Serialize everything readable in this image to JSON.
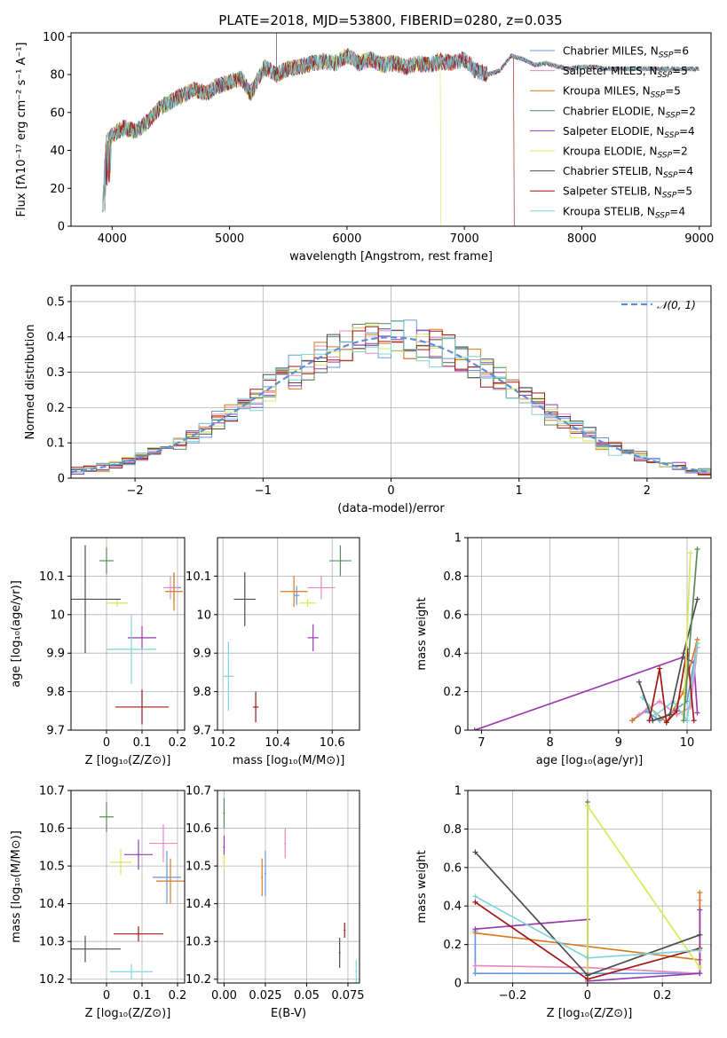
{
  "figure_title": "PLATE=2018, MJD=53800, FIBERID=0280, z=0.035",
  "models": [
    {
      "name": "Chabrier MILES",
      "n": "6",
      "color": "#6699dd"
    },
    {
      "name": "Salpeter MILES",
      "n": "5",
      "color": "#e88ac0"
    },
    {
      "name": "Kroupa MILES",
      "n": "5",
      "color": "#d97a20"
    },
    {
      "name": "Chabrier ELODIE",
      "n": "2",
      "color": "#5a8a5a"
    },
    {
      "name": "Salpeter ELODIE",
      "n": "4",
      "color": "#9a3ab0"
    },
    {
      "name": "Kroupa ELODIE",
      "n": "2",
      "color": "#d8e85a"
    },
    {
      "name": "Chabrier STELIB",
      "n": "4",
      "color": "#4d4d4d"
    },
    {
      "name": "Salpeter STELIB",
      "n": "5",
      "color": "#a01818"
    },
    {
      "name": "Kroupa STELIB",
      "n": "4",
      "color": "#80d4d8"
    }
  ],
  "chart_data": [
    {
      "id": "spectrum",
      "type": "line",
      "xlabel": "wavelength [Angstrom, rest frame]",
      "ylabel": "Flux [fλ10⁻¹⁷ erg cm⁻² s⁻¹ A⁻¹]",
      "xlim": [
        3650,
        9100
      ],
      "ylim": [
        0,
        102
      ],
      "xticks": [
        4000,
        5000,
        6000,
        7000,
        8000,
        9000
      ],
      "yticks": [
        0,
        20,
        40,
        60,
        80,
        100
      ],
      "grid": false,
      "legend": "top-right",
      "continuum": [
        [
          3920,
          12
        ],
        [
          3950,
          45
        ],
        [
          4000,
          48
        ],
        [
          4100,
          52
        ],
        [
          4200,
          50
        ],
        [
          4300,
          55
        ],
        [
          4400,
          62
        ],
        [
          4500,
          66
        ],
        [
          4600,
          69
        ],
        [
          4700,
          72
        ],
        [
          4800,
          70
        ],
        [
          4900,
          74
        ],
        [
          5000,
          76
        ],
        [
          5100,
          78
        ],
        [
          5180,
          70
        ],
        [
          5300,
          84
        ],
        [
          5400,
          80
        ],
        [
          5500,
          83
        ],
        [
          5600,
          84
        ],
        [
          5700,
          86
        ],
        [
          5800,
          87
        ],
        [
          5900,
          86
        ],
        [
          6000,
          90
        ],
        [
          6100,
          86
        ],
        [
          6200,
          88
        ],
        [
          6300,
          85
        ],
        [
          6400,
          86
        ],
        [
          6500,
          84
        ],
        [
          6600,
          86
        ],
        [
          6700,
          85
        ],
        [
          6800,
          87
        ],
        [
          6900,
          86
        ],
        [
          7000,
          88
        ],
        [
          7100,
          82
        ],
        [
          7200,
          80
        ],
        [
          7300,
          82
        ],
        [
          7400,
          90
        ],
        [
          7500,
          88
        ],
        [
          7600,
          85
        ],
        [
          7700,
          86
        ],
        [
          7800,
          84
        ],
        [
          7900,
          83
        ],
        [
          8000,
          84
        ],
        [
          8100,
          84
        ],
        [
          8200,
          83
        ],
        [
          8300,
          83
        ],
        [
          8400,
          83
        ],
        [
          8500,
          83
        ],
        [
          8600,
          83
        ],
        [
          8700,
          83
        ],
        [
          8800,
          83
        ],
        [
          8900,
          83
        ],
        [
          9000,
          83
        ]
      ],
      "dips": [
        {
          "model": "Kroupa ELODIE",
          "x": 6795,
          "low": 0,
          "until": 9000
        },
        {
          "model": "Salpeter STELIB",
          "x": 7420,
          "low": 0,
          "until": 9000
        }
      ]
    },
    {
      "id": "residuals",
      "type": "histogram",
      "xlabel": "(data-model)/error",
      "ylabel": "Normed distribution",
      "xlim": [
        -2.5,
        2.5
      ],
      "ylim": [
        0,
        0.545
      ],
      "xticks": [
        -2,
        -1,
        0,
        1,
        2
      ],
      "yticks": [
        0.0,
        0.1,
        0.2,
        0.3,
        0.4,
        0.5
      ],
      "grid": true,
      "legend": "top-right",
      "legend_label": "𝒩(0, 1)",
      "normal_color": "#5a8fd8",
      "bin_width": 0.1
    },
    {
      "id": "age_vs_Z",
      "type": "errorbar",
      "xlabel": "Z [log₁₀(Z/Z⊙)]",
      "ylabel": "age  [log₁₀(age/yr)]",
      "xlim": [
        -0.1,
        0.22
      ],
      "ylim": [
        9.7,
        10.2
      ],
      "xticks": [
        0.0,
        0.1,
        0.2
      ],
      "yticks": [
        9.7,
        9.8,
        9.9,
        10.0,
        10.1
      ],
      "grid": true,
      "points": [
        {
          "model": "Chabrier MILES",
          "x": 0.19,
          "xerr": 0.02,
          "y": 10.07,
          "yerr": 0.035
        },
        {
          "model": "Salpeter MILES",
          "x": 0.18,
          "xerr": 0.02,
          "y": 10.07,
          "yerr": 0.03
        },
        {
          "model": "Kroupa MILES",
          "x": 0.19,
          "xerr": 0.025,
          "y": 10.06,
          "yerr": 0.05
        },
        {
          "model": "Chabrier ELODIE",
          "x": 0.0,
          "xerr": 0.02,
          "y": 10.14,
          "yerr": 0.035
        },
        {
          "model": "Salpeter ELODIE",
          "x": 0.1,
          "xerr": 0.04,
          "y": 9.94,
          "yerr": 0.03
        },
        {
          "model": "Kroupa ELODIE",
          "x": 0.03,
          "xerr": 0.03,
          "y": 10.03,
          "yerr": 0.01
        },
        {
          "model": "Chabrier STELIB",
          "x": -0.06,
          "xerr": 0.1,
          "y": 10.04,
          "yerr": 0.14
        },
        {
          "model": "Salpeter STELIB",
          "x": 0.1,
          "xerr": 0.075,
          "y": 9.76,
          "yerr": 0.045
        },
        {
          "model": "Kroupa STELIB",
          "x": 0.07,
          "xerr": 0.07,
          "y": 9.91,
          "yerr": 0.09
        }
      ]
    },
    {
      "id": "age_vs_mass",
      "type": "errorbar",
      "xlabel": "mass [log₁₀(M/M⊙)]",
      "xlim": [
        10.18,
        10.7
      ],
      "ylim": [
        9.7,
        10.2
      ],
      "xticks": [
        10.2,
        10.4,
        10.6
      ],
      "yticks": [
        9.7,
        9.8,
        9.9,
        10.0,
        10.1
      ],
      "grid": true,
      "points": [
        {
          "model": "Chabrier MILES",
          "x": 10.47,
          "xerr": 0.01,
          "y": 10.05,
          "yerr": 0.025
        },
        {
          "model": "Salpeter MILES",
          "x": 10.56,
          "xerr": 0.05,
          "y": 10.07,
          "yerr": 0.03
        },
        {
          "model": "Kroupa MILES",
          "x": 10.46,
          "xerr": 0.05,
          "y": 10.06,
          "yerr": 0.04
        },
        {
          "model": "Chabrier ELODIE",
          "x": 10.63,
          "xerr": 0.04,
          "y": 10.14,
          "yerr": 0.04
        },
        {
          "model": "Salpeter ELODIE",
          "x": 10.53,
          "xerr": 0.02,
          "y": 9.94,
          "yerr": 0.035
        },
        {
          "model": "Kroupa ELODIE",
          "x": 10.51,
          "xerr": 0.03,
          "y": 10.03,
          "yerr": 0.01
        },
        {
          "model": "Chabrier STELIB",
          "x": 10.28,
          "xerr": 0.04,
          "y": 10.04,
          "yerr": 0.07
        },
        {
          "model": "Salpeter STELIB",
          "x": 10.32,
          "xerr": 0.01,
          "y": 9.76,
          "yerr": 0.04
        },
        {
          "model": "Kroupa STELIB",
          "x": 10.22,
          "xerr": 0.02,
          "y": 9.84,
          "yerr": 0.09
        }
      ]
    },
    {
      "id": "mass_weight_vs_age",
      "type": "line",
      "xlabel": "age  [log₁₀(age/yr)]",
      "ylabel": "mass weight",
      "xlim": [
        6.8,
        10.35
      ],
      "ylim": [
        0,
        1.0
      ],
      "xticks": [
        7,
        8,
        9,
        10
      ],
      "yticks": [
        0.0,
        0.2,
        0.4,
        0.6,
        0.8,
        1.0
      ],
      "grid": true,
      "series": [
        {
          "model": "Salpeter ELODIE",
          "x": [
            6.9,
            9.95,
            10.1,
            10.15
          ],
          "y": [
            0.0,
            0.38,
            0.35,
            0.09
          ]
        },
        {
          "model": "Chabrier MILES",
          "x": [
            9.2,
            9.4,
            9.6,
            9.8,
            10.0,
            10.15
          ],
          "y": [
            0.05,
            0.1,
            0.05,
            0.1,
            0.15,
            0.45
          ]
        },
        {
          "model": "Kroupa MILES",
          "x": [
            9.2,
            9.45,
            9.7,
            9.95,
            10.15
          ],
          "y": [
            0.05,
            0.12,
            0.04,
            0.2,
            0.47
          ]
        },
        {
          "model": "Salpeter MILES",
          "x": [
            9.3,
            9.6,
            9.85,
            10.05,
            10.15
          ],
          "y": [
            0.08,
            0.15,
            0.08,
            0.12,
            0.43
          ]
        },
        {
          "model": "Kroupa STELIB",
          "x": [
            9.35,
            9.55,
            9.8,
            10.0,
            10.15
          ],
          "y": [
            0.17,
            0.08,
            0.15,
            0.05,
            0.45
          ]
        },
        {
          "model": "Chabrier STELIB",
          "x": [
            9.3,
            9.5,
            9.75,
            9.95,
            10.15
          ],
          "y": [
            0.25,
            0.05,
            0.08,
            0.4,
            0.68
          ]
        },
        {
          "model": "Salpeter STELIB",
          "x": [
            9.45,
            9.6,
            9.7,
            9.85,
            10.0,
            10.1
          ],
          "y": [
            0.05,
            0.32,
            0.04,
            0.1,
            0.42,
            0.05
          ]
        },
        {
          "model": "Kroupa ELODIE",
          "x": [
            9.95,
            10.05
          ],
          "y": [
            0.08,
            0.92
          ]
        },
        {
          "model": "Chabrier ELODIE",
          "x": [
            9.95,
            10.15
          ],
          "y": [
            0.05,
            0.94
          ]
        }
      ]
    },
    {
      "id": "mass_vs_Z",
      "type": "errorbar",
      "xlabel": "Z [log₁₀(Z/Z⊙)]",
      "ylabel": "mass [log₁₀(M/M⊙)]",
      "xlim": [
        -0.1,
        0.22
      ],
      "ylim": [
        10.19,
        10.7
      ],
      "xticks": [
        0.0,
        0.1,
        0.2
      ],
      "yticks": [
        10.2,
        10.3,
        10.4,
        10.5,
        10.6,
        10.7
      ],
      "grid": true,
      "points": [
        {
          "model": "Chabrier MILES",
          "x": 0.17,
          "xerr": 0.04,
          "y": 10.47,
          "yerr": 0.07
        },
        {
          "model": "Salpeter MILES",
          "x": 0.16,
          "xerr": 0.04,
          "y": 10.56,
          "yerr": 0.05
        },
        {
          "model": "Kroupa MILES",
          "x": 0.18,
          "xerr": 0.04,
          "y": 10.46,
          "yerr": 0.06
        },
        {
          "model": "Chabrier ELODIE",
          "x": 0.0,
          "xerr": 0.02,
          "y": 10.63,
          "yerr": 0.04
        },
        {
          "model": "Salpeter ELODIE",
          "x": 0.09,
          "xerr": 0.04,
          "y": 10.53,
          "yerr": 0.04
        },
        {
          "model": "Kroupa ELODIE",
          "x": 0.04,
          "xerr": 0.03,
          "y": 10.51,
          "yerr": 0.035
        },
        {
          "model": "Chabrier STELIB",
          "x": -0.06,
          "xerr": 0.1,
          "y": 10.28,
          "yerr": 0.035
        },
        {
          "model": "Salpeter STELIB",
          "x": 0.09,
          "xerr": 0.07,
          "y": 10.32,
          "yerr": 0.02
        },
        {
          "model": "Kroupa STELIB",
          "x": 0.07,
          "xerr": 0.06,
          "y": 10.22,
          "yerr": 0.02
        }
      ]
    },
    {
      "id": "mass_vs_ebv",
      "type": "errorbar",
      "xlabel": "E(B-V)",
      "xlim": [
        -0.004,
        0.082
      ],
      "ylim": [
        10.19,
        10.7
      ],
      "xticks": [
        0.0,
        0.025,
        0.05,
        0.075
      ],
      "xticklabels": [
        "0.00",
        "0.025",
        "0.05",
        "0.075"
      ],
      "yticks": [
        10.2,
        10.3,
        10.4,
        10.5,
        10.6,
        10.7
      ],
      "grid": true,
      "points": [
        {
          "model": "Chabrier MILES",
          "x": 0.025,
          "xerr": 0.0,
          "y": 10.48,
          "yerr": 0.06
        },
        {
          "model": "Salpeter MILES",
          "x": 0.037,
          "xerr": 0.0,
          "y": 10.56,
          "yerr": 0.04
        },
        {
          "model": "Kroupa MILES",
          "x": 0.023,
          "xerr": 0.0,
          "y": 10.47,
          "yerr": 0.05
        },
        {
          "model": "Chabrier ELODIE",
          "x": 0.0,
          "xerr": 0.0,
          "y": 10.64,
          "yerr": 0.04
        },
        {
          "model": "Salpeter ELODIE",
          "x": 0.0,
          "xerr": 0.0,
          "y": 10.55,
          "yerr": 0.03
        },
        {
          "model": "Kroupa ELODIE",
          "x": 0.0,
          "xerr": 0.0,
          "y": 10.51,
          "yerr": 0.02
        },
        {
          "model": "Chabrier STELIB",
          "x": 0.07,
          "xerr": 0.0,
          "y": 10.27,
          "yerr": 0.04
        },
        {
          "model": "Salpeter STELIB",
          "x": 0.073,
          "xerr": 0.0,
          "y": 10.33,
          "yerr": 0.02
        },
        {
          "model": "Kroupa STELIB",
          "x": 0.08,
          "xerr": 0.0,
          "y": 10.22,
          "yerr": 0.03
        }
      ]
    },
    {
      "id": "mass_weight_vs_Z",
      "type": "line",
      "xlabel": "Z [log₁₀(Z/Z⊙)]",
      "ylabel": "mass weight",
      "xlim": [
        -0.32,
        0.33
      ],
      "ylim": [
        0,
        1.0
      ],
      "xticks": [
        -0.2,
        0.0,
        0.2
      ],
      "yticks": [
        0.0,
        0.2,
        0.4,
        0.6,
        0.8,
        1.0
      ],
      "grid": true,
      "series": [
        {
          "model": "Chabrier MILES",
          "x": [
            -0.3,
            -0.3,
            0.0,
            0.3,
            0.3
          ],
          "y": [
            0.27,
            0.05,
            0.05,
            0.05,
            0.18
          ]
        },
        {
          "model": "Salpeter MILES",
          "x": [
            -0.3,
            0.0,
            0.3,
            0.3
          ],
          "y": [
            0.09,
            0.08,
            0.05,
            0.43
          ]
        },
        {
          "model": "Kroupa MILES",
          "x": [
            -0.3,
            0.3,
            0.3
          ],
          "y": [
            0.26,
            0.12,
            0.47
          ]
        },
        {
          "model": "Chabrier ELODIE",
          "x": [
            0.0,
            0.0
          ],
          "y": [
            0.04,
            0.94
          ]
        },
        {
          "model": "Salpeter ELODIE",
          "x": [
            -0.3,
            0.0,
            0.0,
            0.3,
            0.3
          ],
          "y": [
            0.28,
            0.33,
            0.01,
            0.05,
            0.38
          ]
        },
        {
          "model": "Kroupa ELODIE",
          "x": [
            0.0,
            0.0,
            0.3
          ],
          "y": [
            0.02,
            0.92,
            0.08
          ]
        },
        {
          "model": "Chabrier STELIB",
          "x": [
            -0.3,
            0.0,
            0.3
          ],
          "y": [
            0.68,
            0.04,
            0.25
          ]
        },
        {
          "model": "Salpeter STELIB",
          "x": [
            -0.3,
            0.0,
            0.3
          ],
          "y": [
            0.42,
            0.02,
            0.18
          ]
        },
        {
          "model": "Kroupa STELIB",
          "x": [
            -0.3,
            0.0,
            0.3
          ],
          "y": [
            0.45,
            0.13,
            0.17
          ]
        }
      ]
    }
  ]
}
